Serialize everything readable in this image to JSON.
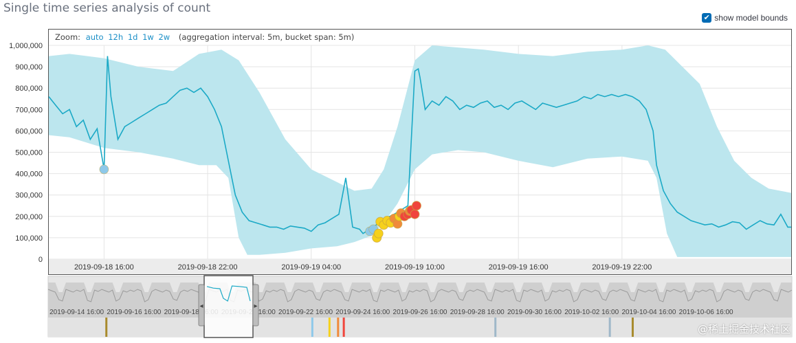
{
  "page": {
    "title": "Single time series analysis of count"
  },
  "model_bounds_toggle": {
    "label": "show model bounds",
    "checked": true
  },
  "zoom_bar": {
    "label": "Zoom:",
    "options": [
      "auto",
      "12h",
      "1d",
      "1w",
      "2w"
    ],
    "info": "(aggregation interval: 5m, bucket span: 5m)"
  },
  "colors": {
    "line": "#1ba9c6",
    "bounds": "#bce6ee",
    "anomaly_low": "#8ec9ea",
    "anomaly_minor": "#f6d11c",
    "anomaly_major": "#f08a3b",
    "anomaly_critical": "#f0453c"
  },
  "chart_data": {
    "type": "line",
    "title": "Single time series analysis of count",
    "xlabel": "",
    "ylabel": "",
    "ylim": [
      0,
      1000000
    ],
    "y_ticks": [
      "0",
      "100,000",
      "200,000",
      "300,000",
      "400,000",
      "500,000",
      "600,000",
      "700,000",
      "800,000",
      "900,000",
      "1,000,000"
    ],
    "x_tick_labels": [
      "2019-09-18 16:00",
      "2019-09-18 22:00",
      "2019-09-19 04:00",
      "2019-09-19 10:00",
      "2019-09-19 16:00",
      "2019-09-19 22:00"
    ],
    "x_tick_hours": [
      16,
      22,
      28,
      34,
      40,
      46
    ],
    "x_range_hours": [
      12.8,
      55.8
    ],
    "grid": true,
    "series": [
      {
        "name": "count",
        "x": [
          12.8,
          13.2,
          13.6,
          14.0,
          14.4,
          14.8,
          15.2,
          15.6,
          16.0,
          16.2,
          16.4,
          16.8,
          17.2,
          17.6,
          18.0,
          18.4,
          18.8,
          19.2,
          19.6,
          20.0,
          20.4,
          20.8,
          21.2,
          21.6,
          22.0,
          22.4,
          22.8,
          23.2,
          23.6,
          24.0,
          24.4,
          24.8,
          25.2,
          25.6,
          26.0,
          26.4,
          26.8,
          27.2,
          27.6,
          28.0,
          28.4,
          28.8,
          29.2,
          29.6,
          30.0,
          30.4,
          30.8,
          31.0,
          31.2,
          31.6,
          32.0,
          32.4,
          32.8,
          33.2,
          33.6,
          34.0,
          34.2,
          34.3,
          34.6,
          35.0,
          35.4,
          35.8,
          36.2,
          36.6,
          37.0,
          37.4,
          37.8,
          38.2,
          38.6,
          39.0,
          39.4,
          39.8,
          40.2,
          40.6,
          41.0,
          41.4,
          41.8,
          42.2,
          42.6,
          43.0,
          43.4,
          43.8,
          44.2,
          44.6,
          45.0,
          45.4,
          45.8,
          46.2,
          46.6,
          47.0,
          47.4,
          47.8,
          48.0,
          48.4,
          48.8,
          49.2,
          49.6,
          50.0,
          50.4,
          50.8,
          51.2,
          51.6,
          52.0,
          52.4,
          52.8,
          53.2,
          53.6,
          54.0,
          54.4,
          54.8,
          55.2,
          55.6,
          55.8
        ],
        "values": [
          760000,
          720000,
          680000,
          700000,
          620000,
          650000,
          560000,
          610000,
          420000,
          950000,
          760000,
          560000,
          620000,
          640000,
          660000,
          680000,
          700000,
          720000,
          730000,
          760000,
          790000,
          800000,
          780000,
          800000,
          760000,
          700000,
          620000,
          460000,
          300000,
          220000,
          180000,
          170000,
          160000,
          150000,
          150000,
          140000,
          155000,
          150000,
          145000,
          130000,
          160000,
          170000,
          190000,
          210000,
          380000,
          150000,
          140000,
          120000,
          130000,
          150000,
          175000,
          195000,
          210000,
          230000,
          250000,
          880000,
          890000,
          850000,
          700000,
          740000,
          720000,
          760000,
          740000,
          700000,
          720000,
          710000,
          730000,
          740000,
          710000,
          720000,
          700000,
          730000,
          740000,
          720000,
          700000,
          730000,
          720000,
          710000,
          720000,
          730000,
          740000,
          760000,
          750000,
          770000,
          760000,
          770000,
          760000,
          770000,
          760000,
          740000,
          700000,
          600000,
          440000,
          320000,
          260000,
          220000,
          200000,
          180000,
          170000,
          160000,
          165000,
          150000,
          160000,
          175000,
          170000,
          140000,
          160000,
          180000,
          165000,
          160000,
          210000,
          150000,
          150000
        ]
      },
      {
        "name": "model bounds upper",
        "x": [
          12.8,
          14.0,
          16.0,
          18.0,
          20.0,
          21.5,
          22.8,
          23.8,
          25.0,
          26.5,
          28.0,
          29.5,
          30.5,
          31.5,
          32.2,
          33.0,
          34.0,
          35.0,
          36.5,
          38.0,
          40.0,
          42.0,
          44.0,
          46.0,
          47.5,
          48.5,
          49.5,
          50.5,
          51.5,
          52.5,
          53.5,
          54.5,
          55.8
        ],
        "values": [
          950000,
          960000,
          940000,
          900000,
          880000,
          960000,
          980000,
          930000,
          780000,
          560000,
          420000,
          360000,
          320000,
          330000,
          420000,
          620000,
          930000,
          1000000,
          990000,
          980000,
          960000,
          950000,
          970000,
          980000,
          1000000,
          980000,
          900000,
          820000,
          620000,
          460000,
          380000,
          330000,
          310000
        ]
      },
      {
        "name": "model bounds lower",
        "x": [
          12.8,
          14.0,
          16.0,
          18.0,
          20.0,
          21.5,
          22.5,
          23.2,
          23.8,
          24.3,
          25.0,
          26.5,
          28.0,
          29.5,
          30.5,
          31.5,
          32.2,
          33.0,
          34.0,
          35.0,
          36.5,
          38.0,
          40.0,
          42.0,
          44.0,
          46.0,
          47.5,
          48.0,
          48.6,
          49.2,
          49.8,
          50.5,
          51.5,
          52.5,
          53.5,
          54.5,
          55.8
        ],
        "values": [
          580000,
          570000,
          520000,
          500000,
          470000,
          440000,
          440000,
          380000,
          100000,
          20000,
          20000,
          30000,
          50000,
          60000,
          80000,
          110000,
          170000,
          260000,
          420000,
          490000,
          510000,
          500000,
          460000,
          430000,
          470000,
          480000,
          460000,
          380000,
          120000,
          10000,
          10000,
          10000,
          10000,
          10000,
          10000,
          10000,
          10000
        ]
      }
    ],
    "anomalies": [
      {
        "x": 16.0,
        "y": 420000,
        "severity": "low"
      },
      {
        "x": 31.4,
        "y": 130000,
        "severity": "low"
      },
      {
        "x": 31.6,
        "y": 140000,
        "severity": "low"
      },
      {
        "x": 31.8,
        "y": 100000,
        "severity": "minor"
      },
      {
        "x": 31.9,
        "y": 120000,
        "severity": "minor"
      },
      {
        "x": 32.0,
        "y": 175000,
        "severity": "minor"
      },
      {
        "x": 32.2,
        "y": 160000,
        "severity": "minor"
      },
      {
        "x": 32.4,
        "y": 180000,
        "severity": "minor"
      },
      {
        "x": 32.6,
        "y": 170000,
        "severity": "minor"
      },
      {
        "x": 32.8,
        "y": 190000,
        "severity": "major"
      },
      {
        "x": 33.0,
        "y": 165000,
        "severity": "major"
      },
      {
        "x": 33.1,
        "y": 200000,
        "severity": "minor"
      },
      {
        "x": 33.2,
        "y": 215000,
        "severity": "major"
      },
      {
        "x": 33.4,
        "y": 200000,
        "severity": "critical"
      },
      {
        "x": 33.6,
        "y": 210000,
        "severity": "critical"
      },
      {
        "x": 33.7,
        "y": 225000,
        "severity": "major"
      },
      {
        "x": 33.8,
        "y": 230000,
        "severity": "critical"
      },
      {
        "x": 34.0,
        "y": 210000,
        "severity": "critical"
      },
      {
        "x": 34.1,
        "y": 250000,
        "severity": "critical"
      }
    ]
  },
  "context_chart": {
    "x_tick_labels": [
      "2019-09-14 16:00",
      "2019-09-16 16:00",
      "2019-09-18 16:00",
      "2019-09-20 16:00",
      "2019-09-22 16:00",
      "2019-09-24 16:00",
      "2019-09-26 16:00",
      "2019-09-28 16:00",
      "2019-09-30 16:00",
      "2019-10-02 16:00",
      "2019-10-04 16:00",
      "2019-10-06 16:00"
    ],
    "days": 26,
    "swimlane_markers": [
      {
        "x_day": 2.0,
        "color": "#a88b2d"
      },
      {
        "x_day": 9.2,
        "color": "#8ec9ea"
      },
      {
        "x_day": 9.8,
        "color": "#f6d11c"
      },
      {
        "x_day": 10.1,
        "color": "#f08a3b"
      },
      {
        "x_day": 10.3,
        "color": "#f0453c"
      },
      {
        "x_day": 15.6,
        "color": "#9fb8c9"
      },
      {
        "x_day": 19.6,
        "color": "#9fb8c9"
      },
      {
        "x_day": 20.4,
        "color": "#a88b2d"
      }
    ]
  },
  "watermark": "@稀土掘金技术社区"
}
